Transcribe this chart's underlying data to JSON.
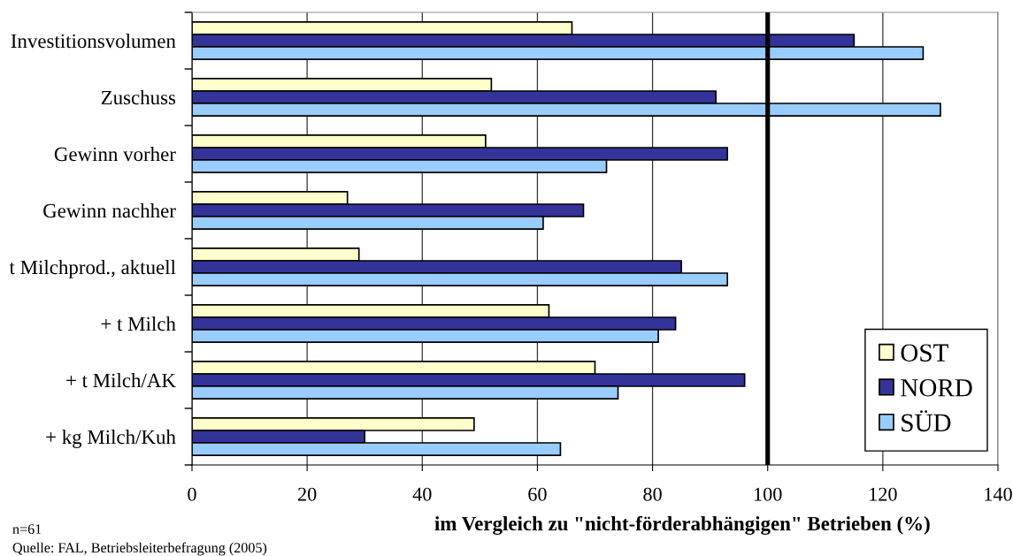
{
  "chart_data": {
    "type": "bar",
    "orientation": "horizontal",
    "categories": [
      "Investitionsvolumen",
      "Zuschuss",
      "Gewinn vorher",
      "Gewinn nachher",
      "t Milchprod., aktuell",
      "+ t Milch",
      "+ t Milch/AK",
      "+ kg Milch/Kuh"
    ],
    "series": [
      {
        "name": "OST",
        "color": "#ffffcc",
        "values": [
          66,
          52,
          51,
          27,
          29,
          62,
          70,
          49
        ]
      },
      {
        "name": "NORD",
        "color": "#333399",
        "values": [
          115,
          91,
          93,
          68,
          85,
          84,
          96,
          30
        ]
      },
      {
        "name": "SÜD",
        "color": "#99ccff",
        "values": [
          127,
          130,
          72,
          61,
          93,
          81,
          74,
          64
        ]
      }
    ],
    "xlim": [
      0,
      140
    ],
    "xticks": [
      0,
      20,
      40,
      60,
      80,
      100,
      120,
      140
    ],
    "xlabel": "im Vergleich zu \"nicht-förderabhängigen\" Betrieben (%)",
    "ref_lines": [
      {
        "axis": "x",
        "value": 100,
        "color": "#000000"
      }
    ],
    "grid": "x",
    "legend": "bottom right",
    "annotations": [
      "n=61",
      "Quelle: FAL, Betriebsleiterbefragung (2005)"
    ]
  }
}
